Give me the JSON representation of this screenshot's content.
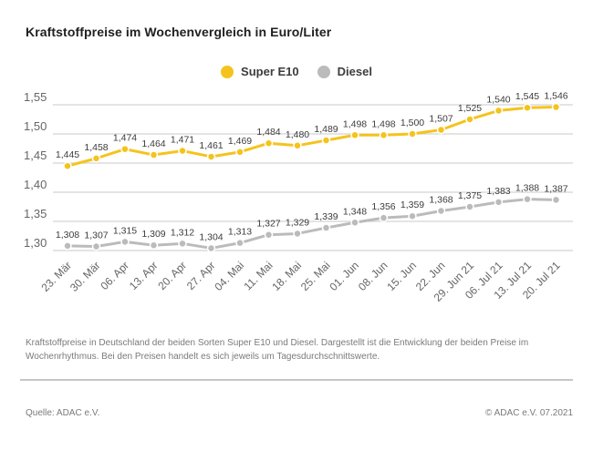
{
  "header": {
    "title": "Kraftstoffpreise im Wochenvergleich in Euro/Liter"
  },
  "chart_data": {
    "type": "line",
    "title": "Kraftstoffpreise im Wochenvergleich in Euro/Liter",
    "categories": [
      "23. Mär",
      "30. Mär",
      "06. Apr",
      "13. Apr",
      "20. Apr",
      "27. Apr",
      "04. Mai",
      "11. Mai",
      "18. Mai",
      "25. Mai",
      "01. Jun",
      "08. Jun",
      "15. Jun",
      "22. Jun",
      "29. Jun 21",
      "06. Jul 21",
      "13. Jul 21",
      "20. Jul 21"
    ],
    "series": [
      {
        "name": "Super E10",
        "color": "#F5C31D",
        "values": [
          1.445,
          1.458,
          1.474,
          1.464,
          1.471,
          1.461,
          1.469,
          1.484,
          1.48,
          1.489,
          1.498,
          1.498,
          1.5,
          1.507,
          1.525,
          1.54,
          1.545,
          1.546
        ]
      },
      {
        "name": "Diesel",
        "color": "#BBBBBB",
        "values": [
          1.308,
          1.307,
          1.315,
          1.309,
          1.312,
          1.304,
          1.313,
          1.327,
          1.329,
          1.339,
          1.348,
          1.356,
          1.359,
          1.368,
          1.375,
          1.383,
          1.388,
          1.387
        ]
      }
    ],
    "y_ticks": [
      1.55,
      1.5,
      1.45,
      1.4,
      1.35,
      1.3
    ],
    "ylim": [
      1.3,
      1.55
    ],
    "xlabel": "",
    "ylabel": "",
    "grid": true,
    "legend_position": "top-center",
    "value_label_decimal_separator": ",",
    "value_label_decimals": 3,
    "tick_label_decimals": 2
  },
  "footer": {
    "description": "Kraftstoffpreise in Deutschland der beiden Sorten Super E10 und Diesel. Dargestellt ist die Entwicklung der beiden Preise im Wochenrhythmus. Bei den Preisen handelt es sich jeweils um Tagesdurchschnittswerte.",
    "source": "Quelle: ADAC e.V.",
    "copyright": "© ADAC e.V. 07.2021"
  },
  "colors": {
    "super_e10": "#F5C31D",
    "diesel": "#BBBBBB",
    "grid_line": "#D4D4D4",
    "axis_text": "#666666",
    "value_label_text": "#3C3C3C",
    "separator_line": "#C6C6C6",
    "title_text": "#1F1F1F",
    "footer_text": "#7A7A7A"
  }
}
